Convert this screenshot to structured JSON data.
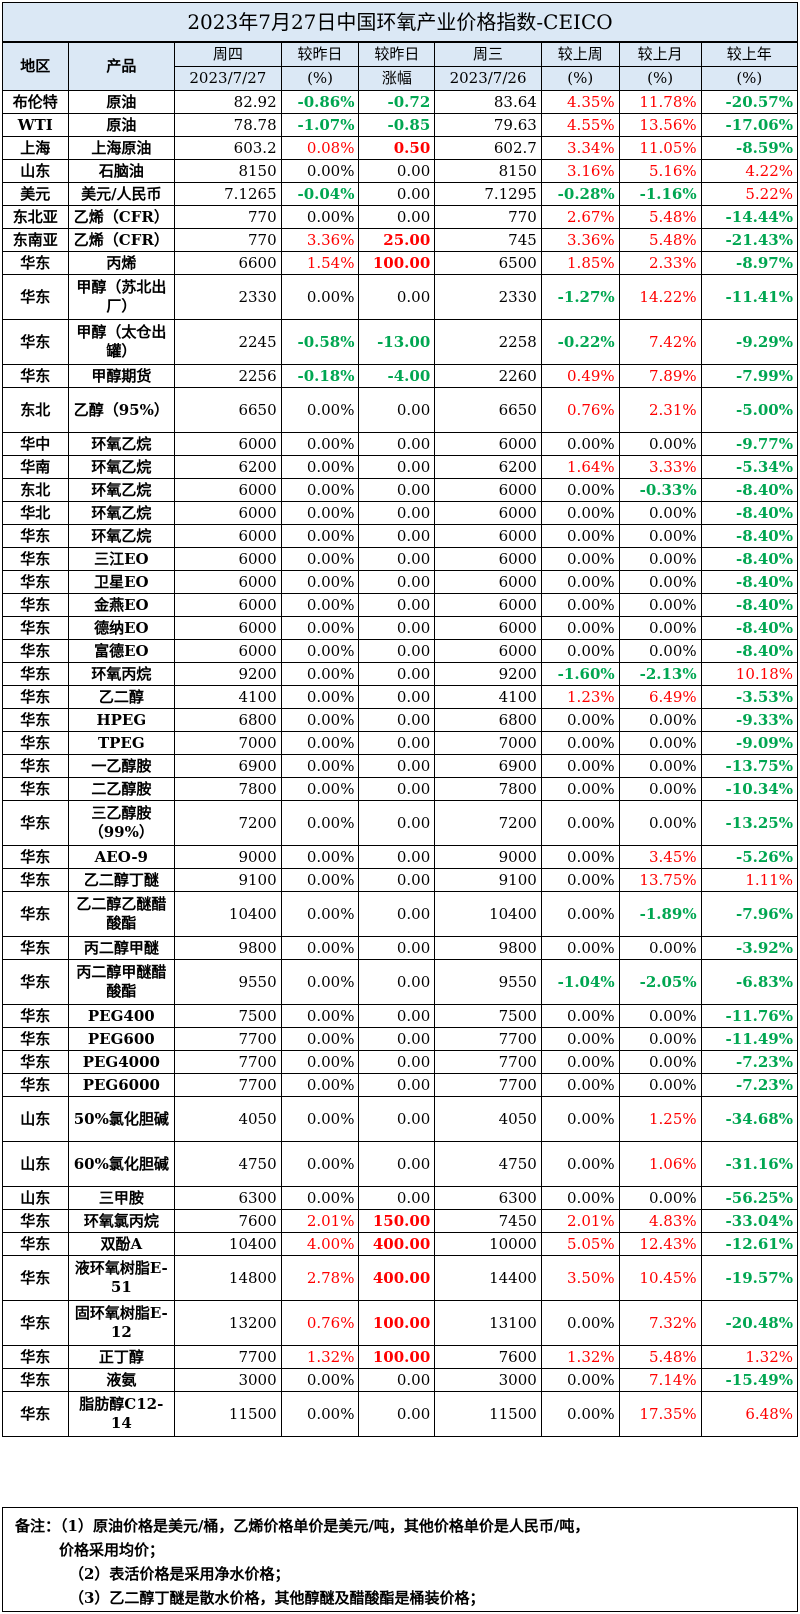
{
  "title": "2023年7月27日中国环氧产业价格指数-CEICO",
  "header": {
    "region": "地区",
    "product": "产品",
    "thu": "周四",
    "thu_date": "2023/7/27",
    "vs_prev_day": "较昨日",
    "pct": "(%)",
    "vs_prev_day2": "较昨日",
    "change": "涨幅",
    "wed": "周三",
    "wed_date": "2023/7/26",
    "vs_week": "较上周",
    "vs_month": "较上月",
    "vs_year": "较上年"
  },
  "rows": [
    [
      "布伦特",
      "原油",
      "82.92",
      "-0.86%",
      "-0.72",
      "83.64",
      "4.35%",
      "11.78%",
      "-20.57%"
    ],
    [
      "WTI",
      "原油",
      "78.78",
      "-1.07%",
      "-0.85",
      "79.63",
      "4.55%",
      "13.56%",
      "-17.06%"
    ],
    [
      "上海",
      "上海原油",
      "603.2",
      "0.08%",
      "0.50",
      "602.7",
      "3.34%",
      "11.05%",
      "-8.59%"
    ],
    [
      "山东",
      "石脑油",
      "8150",
      "0.00%",
      "0.00",
      "8150",
      "3.16%",
      "5.16%",
      "4.22%"
    ],
    [
      "美元",
      "美元/人民币",
      "7.1265",
      "-0.04%",
      "0.00",
      "7.1295",
      "-0.28%",
      "-1.16%",
      "5.22%"
    ],
    [
      "东北亚",
      "乙烯（CFR）",
      "770",
      "0.00%",
      "0.00",
      "770",
      "2.67%",
      "5.48%",
      "-14.44%"
    ],
    [
      "东南亚",
      "乙烯（CFR）",
      "770",
      "3.36%",
      "25.00",
      "745",
      "3.36%",
      "5.48%",
      "-21.43%"
    ],
    [
      "华东",
      "丙烯",
      "6600",
      "1.54%",
      "100.00",
      "6500",
      "1.85%",
      "2.33%",
      "-8.97%"
    ],
    [
      "华东",
      "甲醇（苏北出厂）",
      "2330",
      "0.00%",
      "0.00",
      "2330",
      "-1.27%",
      "14.22%",
      "-11.41%"
    ],
    [
      "华东",
      "甲醇（太仓出罐）",
      "2245",
      "-0.58%",
      "-13.00",
      "2258",
      "-0.22%",
      "7.42%",
      "-9.29%"
    ],
    [
      "华东",
      "甲醇期货",
      "2256",
      "-0.18%",
      "-4.00",
      "2260",
      "0.49%",
      "7.89%",
      "-7.99%"
    ],
    [
      "东北",
      "乙醇（95%）",
      "6650",
      "0.00%",
      "0.00",
      "6650",
      "0.76%",
      "2.31%",
      "-5.00%"
    ],
    [
      "华中",
      "环氧乙烷",
      "6000",
      "0.00%",
      "0.00",
      "6000",
      "0.00%",
      "0.00%",
      "-9.77%"
    ],
    [
      "华南",
      "环氧乙烷",
      "6200",
      "0.00%",
      "0.00",
      "6200",
      "1.64%",
      "3.33%",
      "-5.34%"
    ],
    [
      "东北",
      "环氧乙烷",
      "6000",
      "0.00%",
      "0.00",
      "6000",
      "0.00%",
      "-0.33%",
      "-8.40%"
    ],
    [
      "华北",
      "环氧乙烷",
      "6000",
      "0.00%",
      "0.00",
      "6000",
      "0.00%",
      "0.00%",
      "-8.40%"
    ],
    [
      "华东",
      "环氧乙烷",
      "6000",
      "0.00%",
      "0.00",
      "6000",
      "0.00%",
      "0.00%",
      "-8.40%"
    ],
    [
      "华东",
      "三江EO",
      "6000",
      "0.00%",
      "0.00",
      "6000",
      "0.00%",
      "0.00%",
      "-8.40%"
    ],
    [
      "华东",
      "卫星EO",
      "6000",
      "0.00%",
      "0.00",
      "6000",
      "0.00%",
      "0.00%",
      "-8.40%"
    ],
    [
      "华东",
      "金燕EO",
      "6000",
      "0.00%",
      "0.00",
      "6000",
      "0.00%",
      "0.00%",
      "-8.40%"
    ],
    [
      "华东",
      "德纳EO",
      "6000",
      "0.00%",
      "0.00",
      "6000",
      "0.00%",
      "0.00%",
      "-8.40%"
    ],
    [
      "华东",
      "富德EO",
      "6000",
      "0.00%",
      "0.00",
      "6000",
      "0.00%",
      "0.00%",
      "-8.40%"
    ],
    [
      "华东",
      "环氧丙烷",
      "9200",
      "0.00%",
      "0.00",
      "9200",
      "-1.60%",
      "-2.13%",
      "10.18%"
    ],
    [
      "华东",
      "乙二醇",
      "4100",
      "0.00%",
      "0.00",
      "4100",
      "1.23%",
      "6.49%",
      "-3.53%"
    ],
    [
      "华东",
      "HPEG",
      "6800",
      "0.00%",
      "0.00",
      "6800",
      "0.00%",
      "0.00%",
      "-9.33%"
    ],
    [
      "华东",
      "TPEG",
      "7000",
      "0.00%",
      "0.00",
      "7000",
      "0.00%",
      "0.00%",
      "-9.09%"
    ],
    [
      "华东",
      "一乙醇胺",
      "6900",
      "0.00%",
      "0.00",
      "6900",
      "0.00%",
      "0.00%",
      "-13.75%"
    ],
    [
      "华东",
      "二乙醇胺",
      "7800",
      "0.00%",
      "0.00",
      "7800",
      "0.00%",
      "0.00%",
      "-10.34%"
    ],
    [
      "华东",
      "三乙醇胺（99%）",
      "7200",
      "0.00%",
      "0.00",
      "7200",
      "0.00%",
      "0.00%",
      "-13.25%"
    ],
    [
      "华东",
      "AEO-9",
      "9000",
      "0.00%",
      "0.00",
      "9000",
      "0.00%",
      "3.45%",
      "-5.26%"
    ],
    [
      "华东",
      "乙二醇丁醚",
      "9100",
      "0.00%",
      "0.00",
      "9100",
      "0.00%",
      "13.75%",
      "1.11%"
    ],
    [
      "华东",
      "乙二醇乙醚醋酸酯",
      "10400",
      "0.00%",
      "0.00",
      "10400",
      "0.00%",
      "-1.89%",
      "-7.96%"
    ],
    [
      "华东",
      "丙二醇甲醚",
      "9800",
      "0.00%",
      "0.00",
      "9800",
      "0.00%",
      "0.00%",
      "-3.92%"
    ],
    [
      "华东",
      "丙二醇甲醚醋酸酯",
      "9550",
      "0.00%",
      "0.00",
      "9550",
      "-1.04%",
      "-2.05%",
      "-6.83%"
    ],
    [
      "华东",
      "PEG400",
      "7500",
      "0.00%",
      "0.00",
      "7500",
      "0.00%",
      "0.00%",
      "-11.76%"
    ],
    [
      "华东",
      "PEG600",
      "7700",
      "0.00%",
      "0.00",
      "7700",
      "0.00%",
      "0.00%",
      "-11.49%"
    ],
    [
      "华东",
      "PEG4000",
      "7700",
      "0.00%",
      "0.00",
      "7700",
      "0.00%",
      "0.00%",
      "-7.23%"
    ],
    [
      "华东",
      "PEG6000",
      "7700",
      "0.00%",
      "0.00",
      "7700",
      "0.00%",
      "0.00%",
      "-7.23%"
    ],
    [
      "山东",
      "50%氯化胆碱",
      "4050",
      "0.00%",
      "0.00",
      "4050",
      "0.00%",
      "1.25%",
      "-34.68%"
    ],
    [
      "山东",
      "60%氯化胆碱",
      "4750",
      "0.00%",
      "0.00",
      "4750",
      "0.00%",
      "1.06%",
      "-31.16%"
    ],
    [
      "山东",
      "三甲胺",
      "6300",
      "0.00%",
      "0.00",
      "6300",
      "0.00%",
      "0.00%",
      "-56.25%"
    ],
    [
      "华东",
      "环氧氯丙烷",
      "7600",
      "2.01%",
      "150.00",
      "7450",
      "2.01%",
      "4.83%",
      "-33.04%"
    ],
    [
      "华东",
      "双酚A",
      "10400",
      "4.00%",
      "400.00",
      "10000",
      "5.05%",
      "12.43%",
      "-12.61%"
    ],
    [
      "华东",
      "液环氧树脂E-51",
      "14800",
      "2.78%",
      "400.00",
      "14400",
      "3.50%",
      "10.45%",
      "-19.57%"
    ],
    [
      "华东",
      "固环氧树脂E-12",
      "13200",
      "0.76%",
      "100.00",
      "13100",
      "0.00%",
      "7.32%",
      "-20.48%"
    ],
    [
      "华东",
      "正丁醇",
      "7700",
      "1.32%",
      "100.00",
      "7600",
      "1.32%",
      "5.48%",
      "1.32%"
    ],
    [
      "华东",
      "液氨",
      "3000",
      "0.00%",
      "0.00",
      "3000",
      "0.00%",
      "7.14%",
      "-15.49%"
    ],
    [
      "华东",
      "脂肪醇C12-14",
      "11500",
      "0.00%",
      "0.00",
      "11500",
      "0.00%",
      "17.35%",
      "6.48%"
    ]
  ],
  "notes": [
    "备注：（1）原油价格是美元/桶，乙烯价格单价是美元/吨，其他价格单价是人民币/吨，",
    "价格采用均价；",
    "（2）表活价格是采用净水价格；",
    "（3）乙二醇丁醚是散水价格，其他醇醚及醋酸酯是桶装价格；"
  ]
}
